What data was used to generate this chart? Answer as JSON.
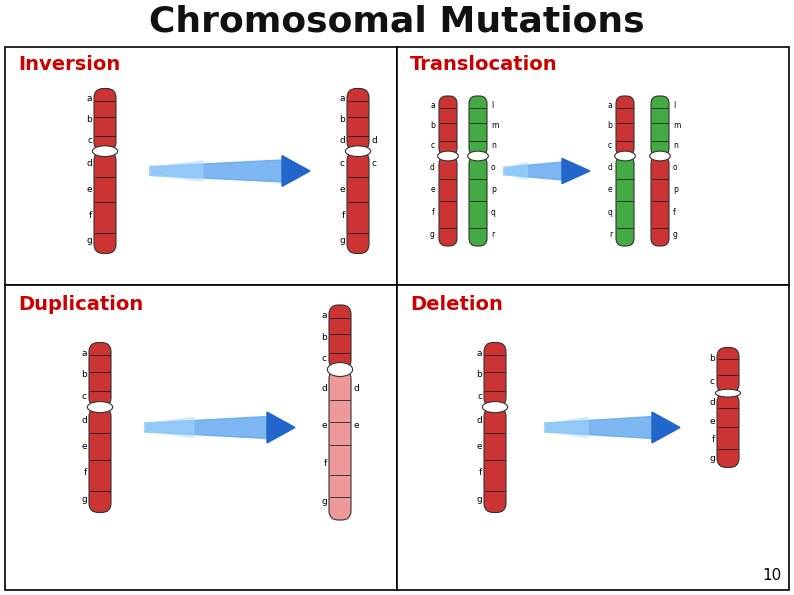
{
  "title": "Chromosomal Mutations",
  "title_fontsize": 26,
  "title_fontweight": "bold",
  "title_color": "#111111",
  "background_color": "#ffffff",
  "panels": [
    {
      "label": "Inversion",
      "label_color": "#cc0000"
    },
    {
      "label": "Translocation",
      "label_color": "#cc0000"
    },
    {
      "label": "Duplication",
      "label_color": "#cc0000"
    },
    {
      "label": "Deletion",
      "label_color": "#cc0000"
    }
  ],
  "arrow_color_body": "#66aaee",
  "arrow_color_tip": "#2266cc",
  "chrom_red_dark": "#bb1111",
  "chrom_red_mid": "#cc3333",
  "chrom_red_light": "#ee9999",
  "chrom_green_dark": "#228822",
  "chrom_green_mid": "#44aa44",
  "chrom_green_light": "#99cc99",
  "centromere_color": "#ffffff",
  "page_number": "10",
  "panel_label_fontsize": 14,
  "band_label_fontsize": 6.5
}
